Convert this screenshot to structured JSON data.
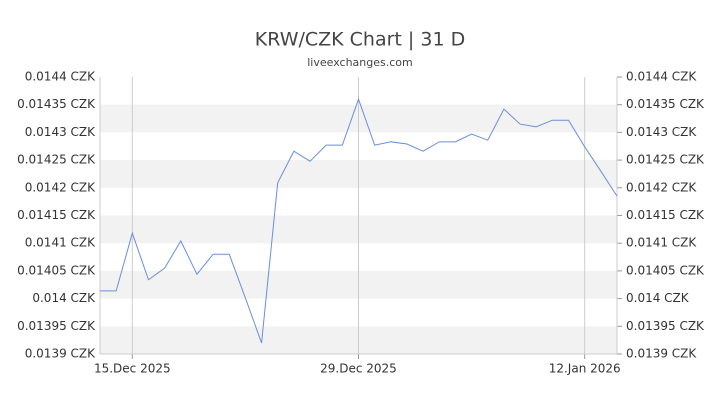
{
  "chart_data": {
    "type": "line",
    "title": "KRW/CZK Chart | 31 D",
    "subtitle": "liveexchanges.com",
    "x": [
      "2025-12-13",
      "2025-12-14",
      "2025-12-15",
      "2025-12-16",
      "2025-12-17",
      "2025-12-18",
      "2025-12-19",
      "2025-12-20",
      "2025-12-21",
      "2025-12-22",
      "2025-12-23",
      "2025-12-24",
      "2025-12-25",
      "2025-12-26",
      "2025-12-27",
      "2025-12-28",
      "2025-12-29",
      "2025-12-30",
      "2025-12-31",
      "2026-01-01",
      "2026-01-02",
      "2026-01-03",
      "2026-01-04",
      "2026-01-05",
      "2026-01-06",
      "2026-01-07",
      "2026-01-08",
      "2026-01-09",
      "2026-01-10",
      "2026-01-11",
      "2026-01-12",
      "2026-01-13",
      "2026-01-14"
    ],
    "series": [
      {
        "name": "KRW/CZK",
        "color": "#6a8fd8",
        "values": [
          0.014014,
          0.014014,
          0.014118,
          0.014034,
          0.014055,
          0.014104,
          0.014044,
          0.01408,
          0.01408,
          0.014001,
          0.01392,
          0.014209,
          0.014266,
          0.014248,
          0.014277,
          0.014277,
          0.01436,
          0.014277,
          0.014283,
          0.014279,
          0.014266,
          0.014283,
          0.014283,
          0.014297,
          0.014286,
          0.014342,
          0.014315,
          0.01431,
          0.014322,
          0.014322,
          0.014274,
          0.01423,
          0.014185
        ]
      }
    ],
    "xlim": [
      "2025-12-13",
      "2026-01-14"
    ],
    "xticks": [
      {
        "value": "2025-12-15",
        "label": "15.Dec 2025"
      },
      {
        "value": "2025-12-29",
        "label": "29.Dec 2025"
      },
      {
        "value": "2026-01-12",
        "label": "12.Jan 2026"
      }
    ],
    "ylim": [
      0.0139,
      0.0144
    ],
    "yticks": [
      {
        "value": 0.0139,
        "label": "0.0139 CZK"
      },
      {
        "value": 0.01395,
        "label": "0.01395 CZK"
      },
      {
        "value": 0.014,
        "label": "0.014 CZK"
      },
      {
        "value": 0.01405,
        "label": "0.01405 CZK"
      },
      {
        "value": 0.0141,
        "label": "0.0141 CZK"
      },
      {
        "value": 0.01415,
        "label": "0.01415 CZK"
      },
      {
        "value": 0.0142,
        "label": "0.0142 CZK"
      },
      {
        "value": 0.01425,
        "label": "0.01425 CZK"
      },
      {
        "value": 0.0143,
        "label": "0.0143 CZK"
      },
      {
        "value": 0.01435,
        "label": "0.01435 CZK"
      },
      {
        "value": 0.0144,
        "label": "0.0144 CZK"
      }
    ],
    "grid": true
  }
}
